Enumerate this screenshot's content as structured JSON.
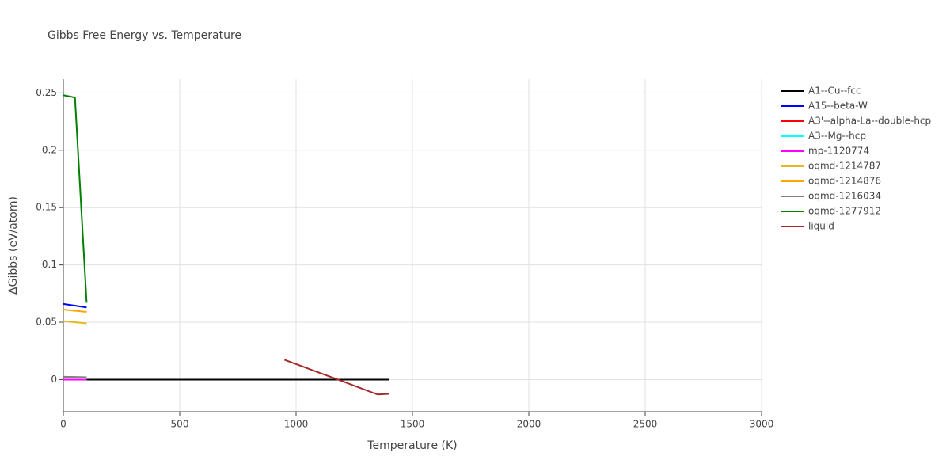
{
  "chart_data": {
    "type": "line",
    "title": "Gibbs Free Energy vs. Temperature",
    "x_label": "Temperature (K)",
    "y_label": "ΔGibbs (eV/atom)",
    "xlim": [
      0,
      3000
    ],
    "ylim": [
      -0.028,
      0.262
    ],
    "xticks": [
      0,
      500,
      1000,
      1500,
      2000,
      2500,
      3000
    ],
    "yticks": [
      0,
      0.05,
      0.1,
      0.15,
      0.2,
      0.25
    ],
    "grid": true,
    "legend": "right",
    "series": [
      {
        "name": "A1--Cu--fcc",
        "color": "#000000",
        "x": [
          0,
          1400
        ],
        "values": [
          0,
          0
        ]
      },
      {
        "name": "A15--beta-W",
        "color": "#0000ff",
        "x": [
          0,
          100
        ],
        "values": [
          0.066,
          0.063
        ]
      },
      {
        "name": "A3'--alpha-La--double-hcp",
        "color": "#ff0000",
        "x": [
          0,
          100
        ],
        "values": [
          0.002,
          0.002
        ]
      },
      {
        "name": "A3--Mg--hcp",
        "color": "#00ffff",
        "x": [
          0,
          100
        ],
        "values": [
          0.0025,
          0.002
        ]
      },
      {
        "name": "mp-1120774",
        "color": "#ff00ff",
        "x": [
          0,
          100
        ],
        "values": [
          0,
          0
        ]
      },
      {
        "name": "oqmd-1214787",
        "color": "#e6b820",
        "x": [
          0,
          100
        ],
        "values": [
          0.051,
          0.049
        ]
      },
      {
        "name": "oqmd-1214876",
        "color": "#ffa500",
        "x": [
          0,
          100
        ],
        "values": [
          0.061,
          0.059
        ]
      },
      {
        "name": "oqmd-1216034",
        "color": "#808080",
        "x": [
          0,
          100
        ],
        "values": [
          0.0025,
          0.002
        ]
      },
      {
        "name": "oqmd-1277912",
        "color": "#008000",
        "x": [
          0,
          50,
          100
        ],
        "values": [
          0.248,
          0.246,
          0.067
        ]
      },
      {
        "name": "liquid",
        "color": "#a52a2a",
        "x": [
          950,
          1100,
          1180,
          1350,
          1400
        ],
        "values": [
          0.0173,
          0.006,
          0,
          -0.013,
          -0.0125
        ]
      }
    ]
  }
}
